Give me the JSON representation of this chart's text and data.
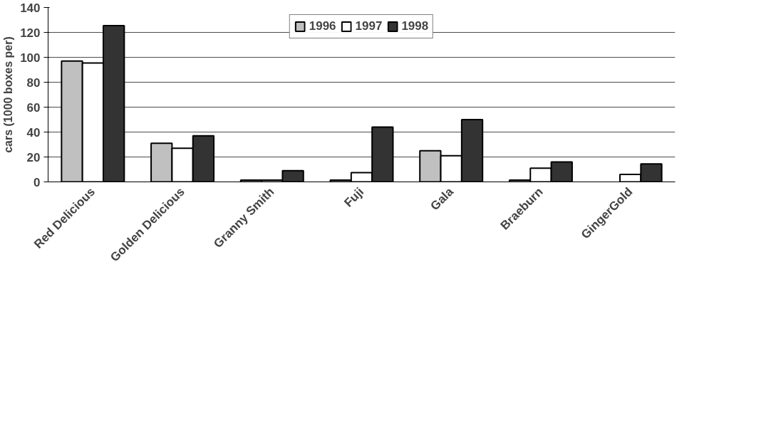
{
  "chart_data": {
    "type": "bar",
    "categories": [
      "Red Delicious",
      "Golden Delicious",
      "Granny Smith",
      "Fuji",
      "Gala",
      "Braeburn",
      "GingerGold"
    ],
    "series": [
      {
        "name": "1996",
        "color": "#c0c0c0",
        "values": [
          97,
          31,
          1.5,
          1.5,
          25,
          1.5,
          null
        ]
      },
      {
        "name": "1997",
        "color": "#ffffff",
        "values": [
          95.5,
          27,
          1.5,
          7.5,
          21,
          11,
          6
        ]
      },
      {
        "name": "1998",
        "color": "#333333",
        "values": [
          125.5,
          37,
          9,
          44,
          50,
          16,
          14.5
        ]
      }
    ],
    "ylabel": "cars (1000 boxes per)",
    "ylim": [
      0,
      140
    ],
    "yticks": [
      0,
      20,
      40,
      60,
      80,
      100,
      120,
      140
    ],
    "grid": "y",
    "legend": "top"
  }
}
